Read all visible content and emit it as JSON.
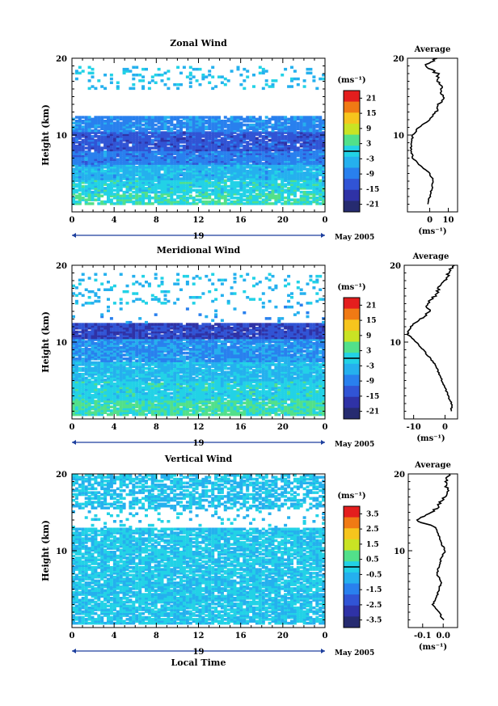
{
  "figure": {
    "time_axis_label": "Local Time"
  },
  "chart_data": [
    {
      "type": "heatmap",
      "title": "Zonal Wind",
      "ylabel": "Height (km)",
      "xticks": [
        "0",
        "4",
        "8",
        "12",
        "16",
        "20",
        "0"
      ],
      "xlim": [
        0,
        24
      ],
      "ylim": [
        0,
        20
      ],
      "yticks": [
        10,
        20
      ],
      "date_day": "19",
      "date_month": "May 2005",
      "colorbar": {
        "unit": "(ms⁻¹)",
        "ticks": [
          "21",
          "15",
          "9",
          "3",
          "-3",
          "-9",
          "-15",
          "-21"
        ],
        "range": [
          -24,
          24
        ],
        "colors": [
          "#e41e1e",
          "#f07a14",
          "#f6c51d",
          "#c9e324",
          "#52e08a",
          "#22d2e6",
          "#25b0ee",
          "#2980ee",
          "#3154d5",
          "#2f32a6",
          "#262b70"
        ]
      },
      "field": {
        "bands": [
          {
            "from": 0.8,
            "to": 2.5,
            "value": 2,
            "gap": 0.2
          },
          {
            "from": 2.5,
            "to": 4.2,
            "value": 0,
            "gap": 0.1
          },
          {
            "from": 4.2,
            "to": 6.2,
            "value": -4,
            "gap": 0.05
          },
          {
            "from": 6.2,
            "to": 8.0,
            "value": -9,
            "gap": 0.02
          },
          {
            "from": 8.0,
            "to": 10.5,
            "value": -13,
            "gap": 0.05
          },
          {
            "from": 10.5,
            "to": 12.5,
            "value": -8,
            "gap": 0.1
          },
          {
            "from": 16.0,
            "to": 19.0,
            "value": -3,
            "gap": 0.85
          }
        ]
      },
      "average": {
        "title": "Average",
        "xlim": [
          -12,
          15
        ],
        "xticks": [
          0,
          10
        ],
        "xlabel": "(ms⁻¹)",
        "heights": [
          1,
          2,
          3,
          4,
          5,
          6,
          7,
          8,
          9,
          10,
          11,
          12,
          13,
          14,
          15,
          16,
          17,
          18,
          19,
          20
        ],
        "values": [
          -1,
          0,
          1,
          2,
          0,
          -5,
          -9,
          -10,
          -10,
          -9,
          -6,
          0,
          3,
          5,
          7,
          6,
          5,
          4,
          -3,
          4
        ]
      }
    },
    {
      "type": "heatmap",
      "title": "Meridional Wind",
      "ylabel": "Height (km)",
      "xticks": [
        "0",
        "4",
        "8",
        "12",
        "16",
        "20",
        "0"
      ],
      "xlim": [
        0,
        24
      ],
      "ylim": [
        0,
        20
      ],
      "yticks": [
        10,
        20
      ],
      "date_day": "19",
      "date_month": "May 2005",
      "colorbar": {
        "unit": "(ms⁻¹)",
        "ticks": [
          "21",
          "15",
          "9",
          "3",
          "-3",
          "-9",
          "-15",
          "-21"
        ],
        "range": [
          -24,
          24
        ],
        "colors": [
          "#e41e1e",
          "#f07a14",
          "#f6c51d",
          "#c9e324",
          "#52e08a",
          "#22d2e6",
          "#25b0ee",
          "#2980ee",
          "#3154d5",
          "#2f32a6",
          "#262b70"
        ]
      },
      "field": {
        "bands": [
          {
            "from": 0.5,
            "to": 2.5,
            "value": 3,
            "gap": 0.05
          },
          {
            "from": 2.5,
            "to": 5.0,
            "value": 0,
            "gap": 0.05
          },
          {
            "from": 5.0,
            "to": 7.5,
            "value": -3,
            "gap": 0.05
          },
          {
            "from": 7.5,
            "to": 10.5,
            "value": -7,
            "gap": 0.05
          },
          {
            "from": 10.5,
            "to": 12.5,
            "value": -15,
            "gap": 0.05
          },
          {
            "from": 12.5,
            "to": 15.0,
            "value": -5,
            "gap": 0.95
          },
          {
            "from": 15.0,
            "to": 19.0,
            "value": -3,
            "gap": 0.85
          }
        ]
      },
      "average": {
        "title": "Average",
        "xlim": [
          -13,
          4
        ],
        "xticks": [
          -10,
          0
        ],
        "xlabel": "(ms⁻¹)",
        "heights": [
          1,
          2,
          3,
          4,
          5,
          6,
          7,
          8,
          9,
          10,
          11,
          12,
          13,
          14,
          15,
          16,
          17,
          18,
          19,
          20
        ],
        "values": [
          2,
          2,
          1,
          0,
          -1,
          -2,
          -3,
          -5,
          -7,
          -9,
          -12,
          -11,
          -8,
          -5,
          -6,
          -3,
          -2,
          0,
          1,
          3
        ]
      }
    },
    {
      "type": "heatmap",
      "title": "Vertical Wind",
      "ylabel": "Height (km)",
      "xlabel": "Local Time",
      "xticks": [
        "0",
        "4",
        "8",
        "12",
        "16",
        "20",
        "0"
      ],
      "xlim": [
        0,
        24
      ],
      "ylim": [
        0,
        20
      ],
      "yticks": [
        10,
        20
      ],
      "date_day": "19",
      "date_month": "May 2005",
      "colorbar": {
        "unit": "(ms⁻¹)",
        "ticks": [
          "3.5",
          "2.5",
          "1.5",
          "0.5",
          "-0.5",
          "-1.5",
          "-2.5",
          "-3.5"
        ],
        "range": [
          -4,
          4
        ],
        "colors": [
          "#e41e1e",
          "#f07a14",
          "#f6c51d",
          "#c9e324",
          "#52e08a",
          "#22d2e6",
          "#25b0ee",
          "#2980ee",
          "#3154d5",
          "#2f32a6",
          "#262b70"
        ]
      },
      "field": {
        "bands": [
          {
            "from": 0.5,
            "to": 13.0,
            "value": -0.3,
            "gap": 0.15
          },
          {
            "from": 13.0,
            "to": 15.5,
            "value": -0.3,
            "gap": 0.9
          },
          {
            "from": 15.5,
            "to": 20.0,
            "value": -0.4,
            "gap": 0.35
          }
        ]
      },
      "average": {
        "title": "Average",
        "xlim": [
          -0.17,
          0.07
        ],
        "xticks": [
          -0.1,
          0.0
        ],
        "xticklabels": [
          "-0.1",
          "0.0"
        ],
        "xlabel": "(ms⁻¹)",
        "heights": [
          1,
          2,
          3,
          4,
          5,
          6,
          7,
          8,
          9,
          10,
          11,
          12,
          13,
          14,
          15,
          16,
          17,
          18,
          19,
          20
        ],
        "values": [
          0.0,
          -0.02,
          -0.05,
          -0.03,
          -0.02,
          -0.01,
          -0.03,
          -0.02,
          -0.01,
          0.01,
          -0.01,
          -0.02,
          -0.04,
          -0.13,
          -0.05,
          -0.02,
          0.01,
          0.02,
          0.01,
          0.03
        ]
      }
    }
  ]
}
